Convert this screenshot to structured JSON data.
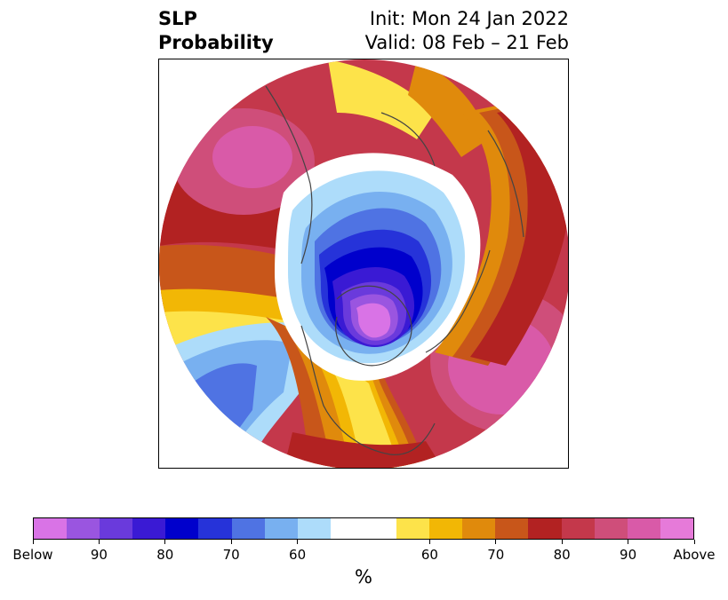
{
  "header": {
    "variable": "SLP",
    "product": "Probability",
    "init": "Init: Mon 24 Jan 2022",
    "valid": "Valid: 08 Feb – 21 Feb"
  },
  "colorbar": {
    "colors": [
      "#d973e6",
      "#9a55e0",
      "#6a3adc",
      "#3a1ad4",
      "#0000cc",
      "#2633d9",
      "#4f73e3",
      "#78b0f0",
      "#addcfa",
      "#ffffff",
      "#ffffff",
      "#fde34a",
      "#f2b705",
      "#e08a0c",
      "#c8561a",
      "#b22222",
      "#c4384b",
      "#cf4e7a",
      "#d95aa8",
      "#e67ad9"
    ],
    "tick_labels": [
      "Below",
      "90",
      "80",
      "70",
      "60",
      "60",
      "70",
      "80",
      "90",
      "Above"
    ],
    "unit": "%"
  }
}
